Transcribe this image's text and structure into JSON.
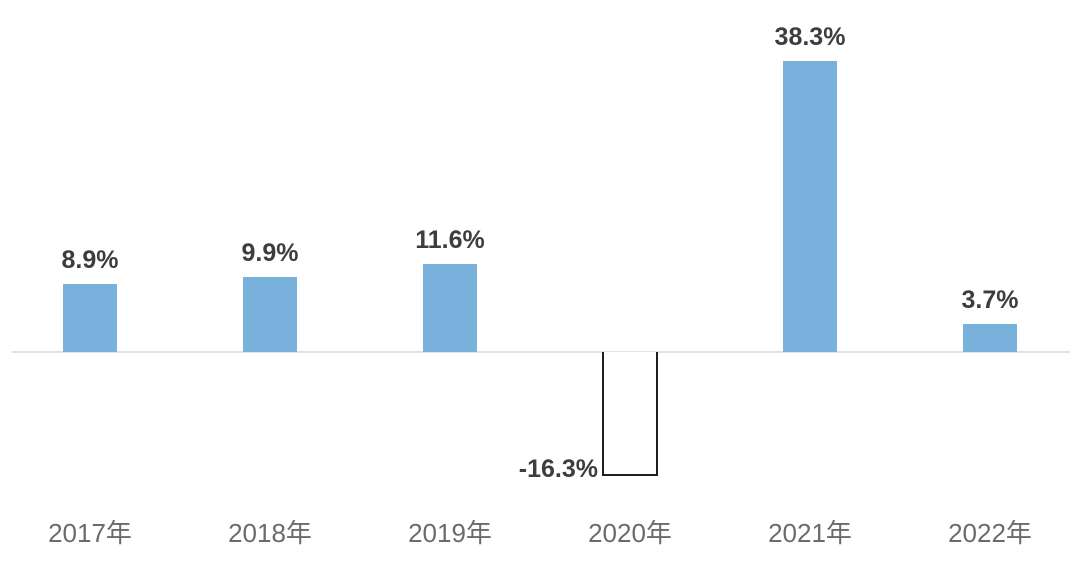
{
  "chart_data": {
    "type": "bar",
    "categories": [
      "2017年",
      "2018年",
      "2019年",
      "2020年",
      "2021年",
      "2022年"
    ],
    "values": [
      8.9,
      9.9,
      11.6,
      -16.3,
      38.3,
      3.7
    ],
    "value_labels": [
      "8.9%",
      "9.9%",
      "11.6%",
      "-16.3%",
      "38.3%",
      "3.7%"
    ],
    "title": "",
    "xlabel": "",
    "ylabel": "",
    "ylim": [
      -20,
      42
    ],
    "grid": false,
    "legend": false,
    "layout": {
      "bar_color": "#77B1DC",
      "negative_bar_fill": "#FFFFFF",
      "negative_bar_border": "#1F1F1F",
      "value_label_color": "#3D3D3D",
      "axis_label_color": "#6B6B6B",
      "baseline_color": "#E2E2E2",
      "label_position_positive": "above-bar",
      "label_position_negative": "left-of-bar-bottom"
    }
  }
}
